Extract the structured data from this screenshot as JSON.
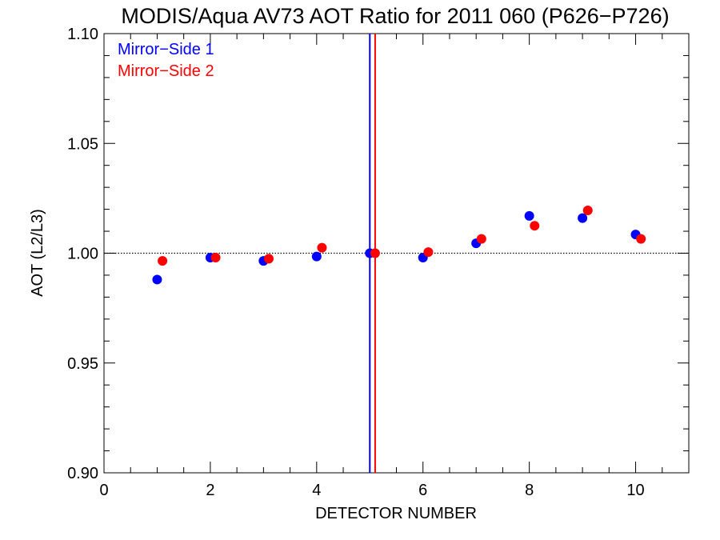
{
  "chart_data": {
    "type": "scatter",
    "title": "MODIS/Aqua AV73 AOT Ratio for 2011 060 (P626−P726)",
    "xlabel": "DETECTOR NUMBER",
    "ylabel": "AOT (L2/L3)",
    "xlim": [
      0,
      11
    ],
    "ylim": [
      0.9,
      1.1
    ],
    "x_ticks": [
      0,
      2,
      4,
      6,
      8,
      10
    ],
    "x_tick_labels": [
      "0",
      "2",
      "4",
      "6",
      "8",
      "10"
    ],
    "y_ticks": [
      0.9,
      0.95,
      1.0,
      1.05,
      1.1
    ],
    "y_tick_labels": [
      "0.90",
      "0.95",
      "1.00",
      "1.05",
      "1.10"
    ],
    "reference_line": {
      "y": 1.0,
      "style": "dotted"
    },
    "legend_position": "top-left",
    "series": [
      {
        "name": "Mirror−Side 1",
        "color": "#0000ff",
        "x": [
          1,
          2,
          3,
          4,
          5,
          6,
          7,
          8,
          9,
          10
        ],
        "y": [
          0.988,
          0.998,
          0.9965,
          0.9985,
          1.0,
          0.998,
          1.0045,
          1.017,
          1.016,
          1.0085
        ],
        "vertical_line_x": 5.0
      },
      {
        "name": "Mirror−Side 2",
        "color": "#ff0000",
        "x": [
          1.1,
          2.1,
          3.1,
          4.1,
          5.1,
          6.1,
          7.1,
          8.1,
          9.1,
          10.1
        ],
        "y": [
          0.9965,
          0.998,
          0.9975,
          1.0025,
          1.0,
          1.0005,
          1.0065,
          1.0125,
          1.0195,
          1.0065
        ],
        "vertical_line_x": 5.1
      }
    ]
  }
}
